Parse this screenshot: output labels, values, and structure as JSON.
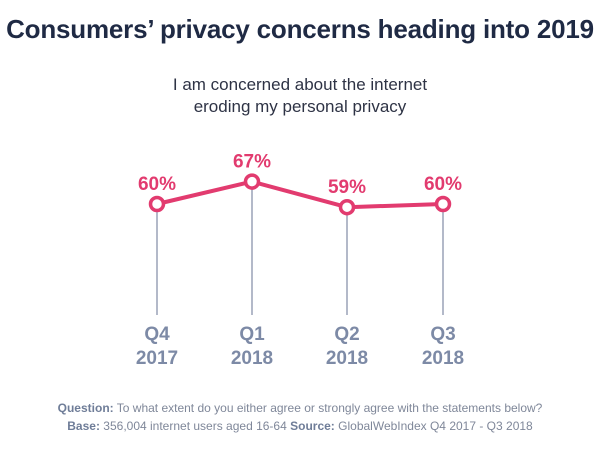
{
  "title": "Consumers’ privacy concerns heading into 2019",
  "colors": {
    "line": "#e23b6f",
    "stem": "#b3b9c9",
    "axis_label": "#7d8aa6",
    "title": "#1f2a44"
  },
  "chart_data": {
    "type": "line",
    "subtitle": "I am concerned about the internet eroding my personal privacy",
    "categories": [
      {
        "period": "Q4",
        "year": "2017"
      },
      {
        "period": "Q1",
        "year": "2018"
      },
      {
        "period": "Q2",
        "year": "2018"
      },
      {
        "period": "Q3",
        "year": "2018"
      }
    ],
    "series": [
      {
        "values": [
          60,
          67,
          59,
          60
        ],
        "labels": [
          "60%",
          "67%",
          "59%",
          "60%"
        ]
      }
    ],
    "unit": "%",
    "ylim": [
      0,
      100
    ],
    "grid": false,
    "legend": "none"
  },
  "footer": {
    "question_label": "Question:",
    "question_text": "To what extent do you either agree or strongly agree with the statements below?",
    "base_label": "Base:",
    "base_text": "356,004 internet users aged 16-64",
    "source_label": "Source:",
    "source_text": "GlobalWebIndex Q4 2017 - Q3 2018"
  }
}
